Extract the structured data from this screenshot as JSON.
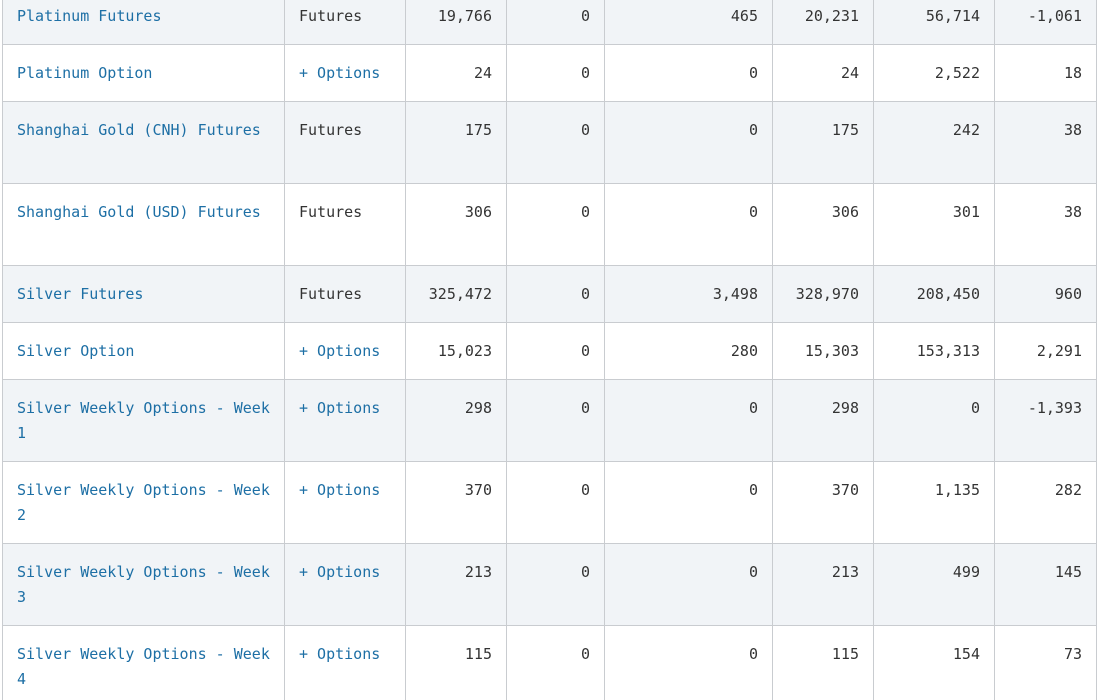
{
  "rows": [
    {
      "product": "Platinum Futures",
      "type": "Futures",
      "expandable": false,
      "c1": "19,766",
      "c2": "0",
      "c3": "465",
      "c4": "20,231",
      "c5": "56,714",
      "c6": "-1,061"
    },
    {
      "product": "Platinum Option",
      "type": "+ Options",
      "expandable": true,
      "c1": "24",
      "c2": "0",
      "c3": "0",
      "c4": "24",
      "c5": "2,522",
      "c6": "18"
    },
    {
      "product": "Shanghai Gold (CNH) Futures",
      "type": "Futures",
      "expandable": false,
      "c1": "175",
      "c2": "0",
      "c3": "0",
      "c4": "175",
      "c5": "242",
      "c6": "38"
    },
    {
      "product": "Shanghai Gold (USD) Futures",
      "type": "Futures",
      "expandable": false,
      "c1": "306",
      "c2": "0",
      "c3": "0",
      "c4": "306",
      "c5": "301",
      "c6": "38"
    },
    {
      "product": "Silver Futures",
      "type": "Futures",
      "expandable": false,
      "c1": "325,472",
      "c2": "0",
      "c3": "3,498",
      "c4": "328,970",
      "c5": "208,450",
      "c6": "960"
    },
    {
      "product": "Silver Option",
      "type": "+ Options",
      "expandable": true,
      "c1": "15,023",
      "c2": "0",
      "c3": "280",
      "c4": "15,303",
      "c5": "153,313",
      "c6": "2,291"
    },
    {
      "product": "Silver Weekly Options - Week 1",
      "type": "+ Options",
      "expandable": true,
      "c1": "298",
      "c2": "0",
      "c3": "0",
      "c4": "298",
      "c5": "0",
      "c6": "-1,393"
    },
    {
      "product": "Silver Weekly Options - Week 2",
      "type": "+ Options",
      "expandable": true,
      "c1": "370",
      "c2": "0",
      "c3": "0",
      "c4": "370",
      "c5": "1,135",
      "c6": "282"
    },
    {
      "product": "Silver Weekly Options - Week 3",
      "type": "+ Options",
      "expandable": true,
      "c1": "213",
      "c2": "0",
      "c3": "0",
      "c4": "213",
      "c5": "499",
      "c6": "145"
    },
    {
      "product": "Silver Weekly Options - Week 4",
      "type": "+ Options",
      "expandable": true,
      "c1": "115",
      "c2": "0",
      "c3": "0",
      "c4": "115",
      "c5": "154",
      "c6": "73"
    }
  ]
}
